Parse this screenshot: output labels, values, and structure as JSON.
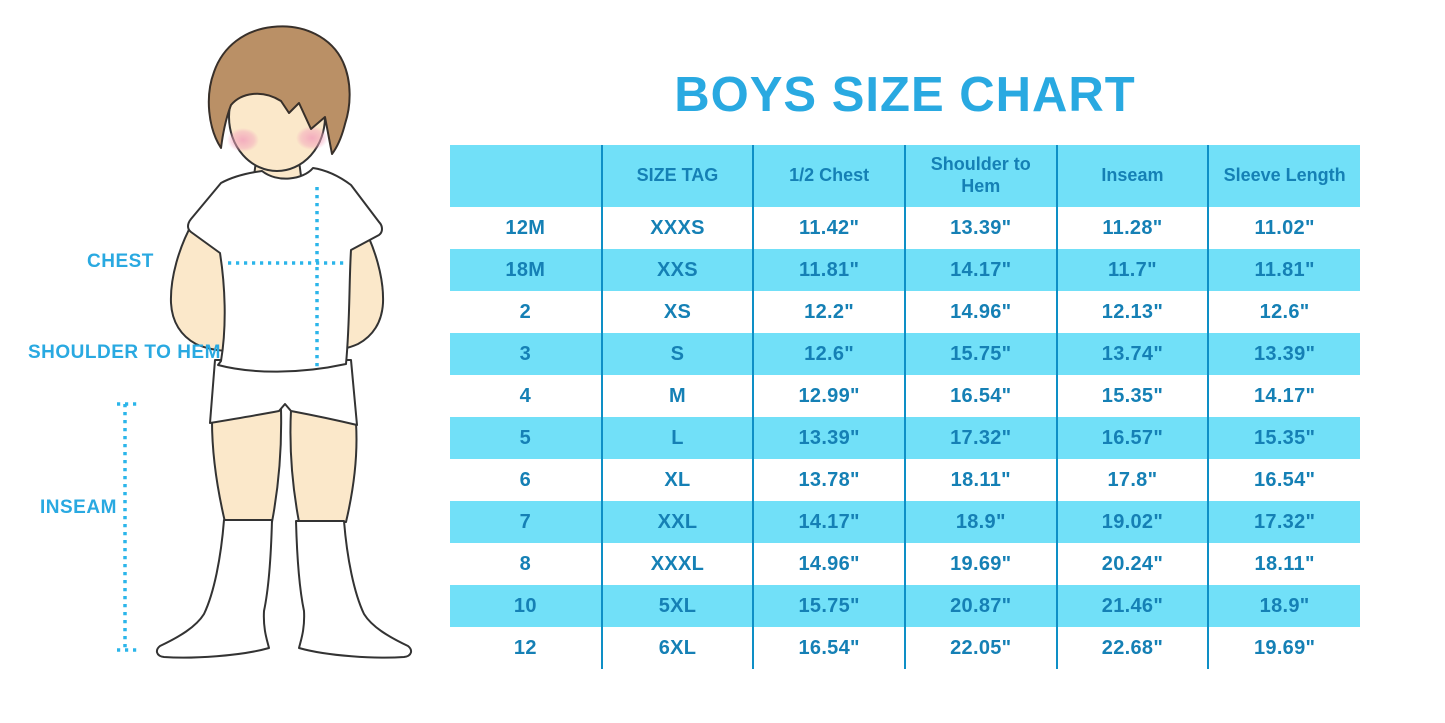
{
  "title": "BOYS SIZE CHART",
  "figure_labels": {
    "chest": "CHEST",
    "shoulder_to_hem": "SHOULDER TO HEM",
    "inseam": "INSEAM"
  },
  "colors": {
    "accent": "#29A9E1",
    "table_fill": "#71E0F8",
    "table_text": "#1580B5",
    "table_divider": "#0E8FC6",
    "measure_dots": "#2BB5EA"
  },
  "chart_data": {
    "type": "table",
    "columns": [
      "",
      "SIZE TAG",
      "1/2 Chest",
      "Shoulder to Hem",
      "Inseam",
      "Sleeve Length"
    ],
    "rows": [
      [
        "12M",
        "XXXS",
        "11.42\"",
        "13.39\"",
        "11.28\"",
        "11.02\""
      ],
      [
        "18M",
        "XXS",
        "11.81\"",
        "14.17\"",
        "11.7\"",
        "11.81\""
      ],
      [
        "2",
        "XS",
        "12.2\"",
        "14.96\"",
        "12.13\"",
        "12.6\""
      ],
      [
        "3",
        "S",
        "12.6\"",
        "15.75\"",
        "13.74\"",
        "13.39\""
      ],
      [
        "4",
        "M",
        "12.99\"",
        "16.54\"",
        "15.35\"",
        "14.17\""
      ],
      [
        "5",
        "L",
        "13.39\"",
        "17.32\"",
        "16.57\"",
        "15.35\""
      ],
      [
        "6",
        "XL",
        "13.78\"",
        "18.11\"",
        "17.8\"",
        "16.54\""
      ],
      [
        "7",
        "XXL",
        "14.17\"",
        "18.9\"",
        "19.02\"",
        "17.32\""
      ],
      [
        "8",
        "XXXL",
        "14.96\"",
        "19.69\"",
        "20.24\"",
        "18.11\""
      ],
      [
        "10",
        "5XL",
        "15.75\"",
        "20.87\"",
        "21.46\"",
        "18.9\""
      ],
      [
        "12",
        "6XL",
        "16.54\"",
        "22.05\"",
        "22.68\"",
        "19.69\""
      ]
    ]
  }
}
